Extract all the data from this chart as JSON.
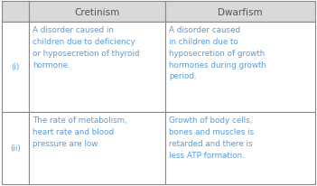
{
  "header_bg": "#d9d9d9",
  "cell_bg": "#ffffff",
  "border_color": "#888888",
  "header_text_color": "#555555",
  "cell_text_color": "#5b9bd5",
  "row_label_color": "#5b9bd5",
  "col1_header": "Cretinism",
  "col2_header": "Dwarfism",
  "rows": [
    {
      "label": "(i)",
      "col1": "A disorder caused in\nchildren due to deficiency\nor hyposecretion of thyroid\nhormone.",
      "col2": "A disorder caused\nin children due to\nhyposecretion of growth\nhormones during growth\nperiod."
    },
    {
      "label": "(ii)",
      "col1": "The rate of metabolism,\nheart rate and blood\npressure are low.",
      "col2": "Growth of body cells,\nbones and muscles is\nretarded and there is\nless ATP formation."
    }
  ],
  "fig_width": 3.51,
  "fig_height": 2.07,
  "dpi": 100
}
